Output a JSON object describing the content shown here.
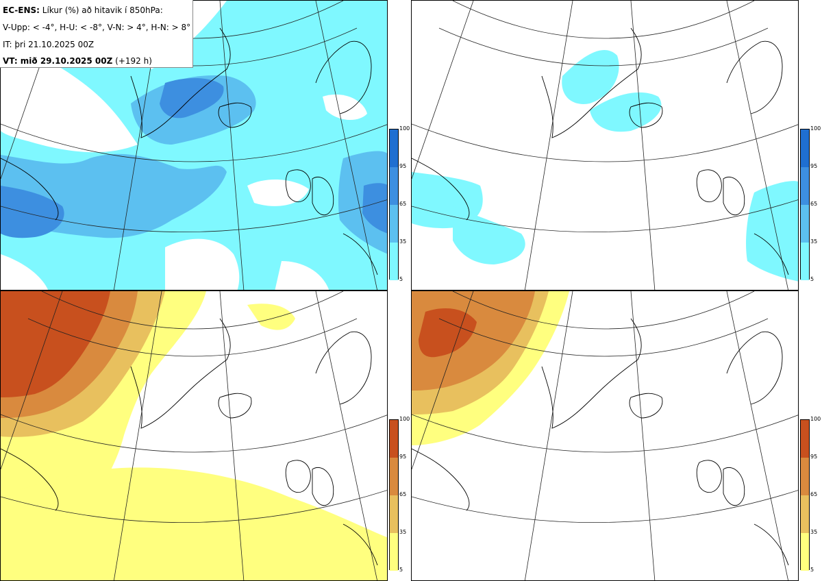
{
  "legend": {
    "line1_bold": "EC-ENS:",
    "line1_rest": " Líkur (%) að hitavik í 850hPa:",
    "line2": "V-Upp: < -4°, H-U: < -8°, V-N: > 4°, H-N: > 8°",
    "line3": "IT: þri 21.10.2025 00Z",
    "line4_bold": "VT: mið 29.10.2025 00Z",
    "line4_rest": " (+192 h)"
  },
  "colorbar": {
    "ticks": [
      "100",
      "95",
      "65",
      "35",
      "5"
    ],
    "cold_colors": [
      "#1f6fd1",
      "#3d8fe0",
      "#5cc0f0",
      "#7ff8ff"
    ],
    "warm_colors": [
      "#c8501e",
      "#d98a3e",
      "#e8c05e",
      "#ffff7f"
    ]
  },
  "panels": [
    {
      "id": "V-Upp",
      "scheme": "cold"
    },
    {
      "id": "H-U",
      "scheme": "cold"
    },
    {
      "id": "V-N",
      "scheme": "warm"
    },
    {
      "id": "H-N",
      "scheme": "warm"
    }
  ]
}
